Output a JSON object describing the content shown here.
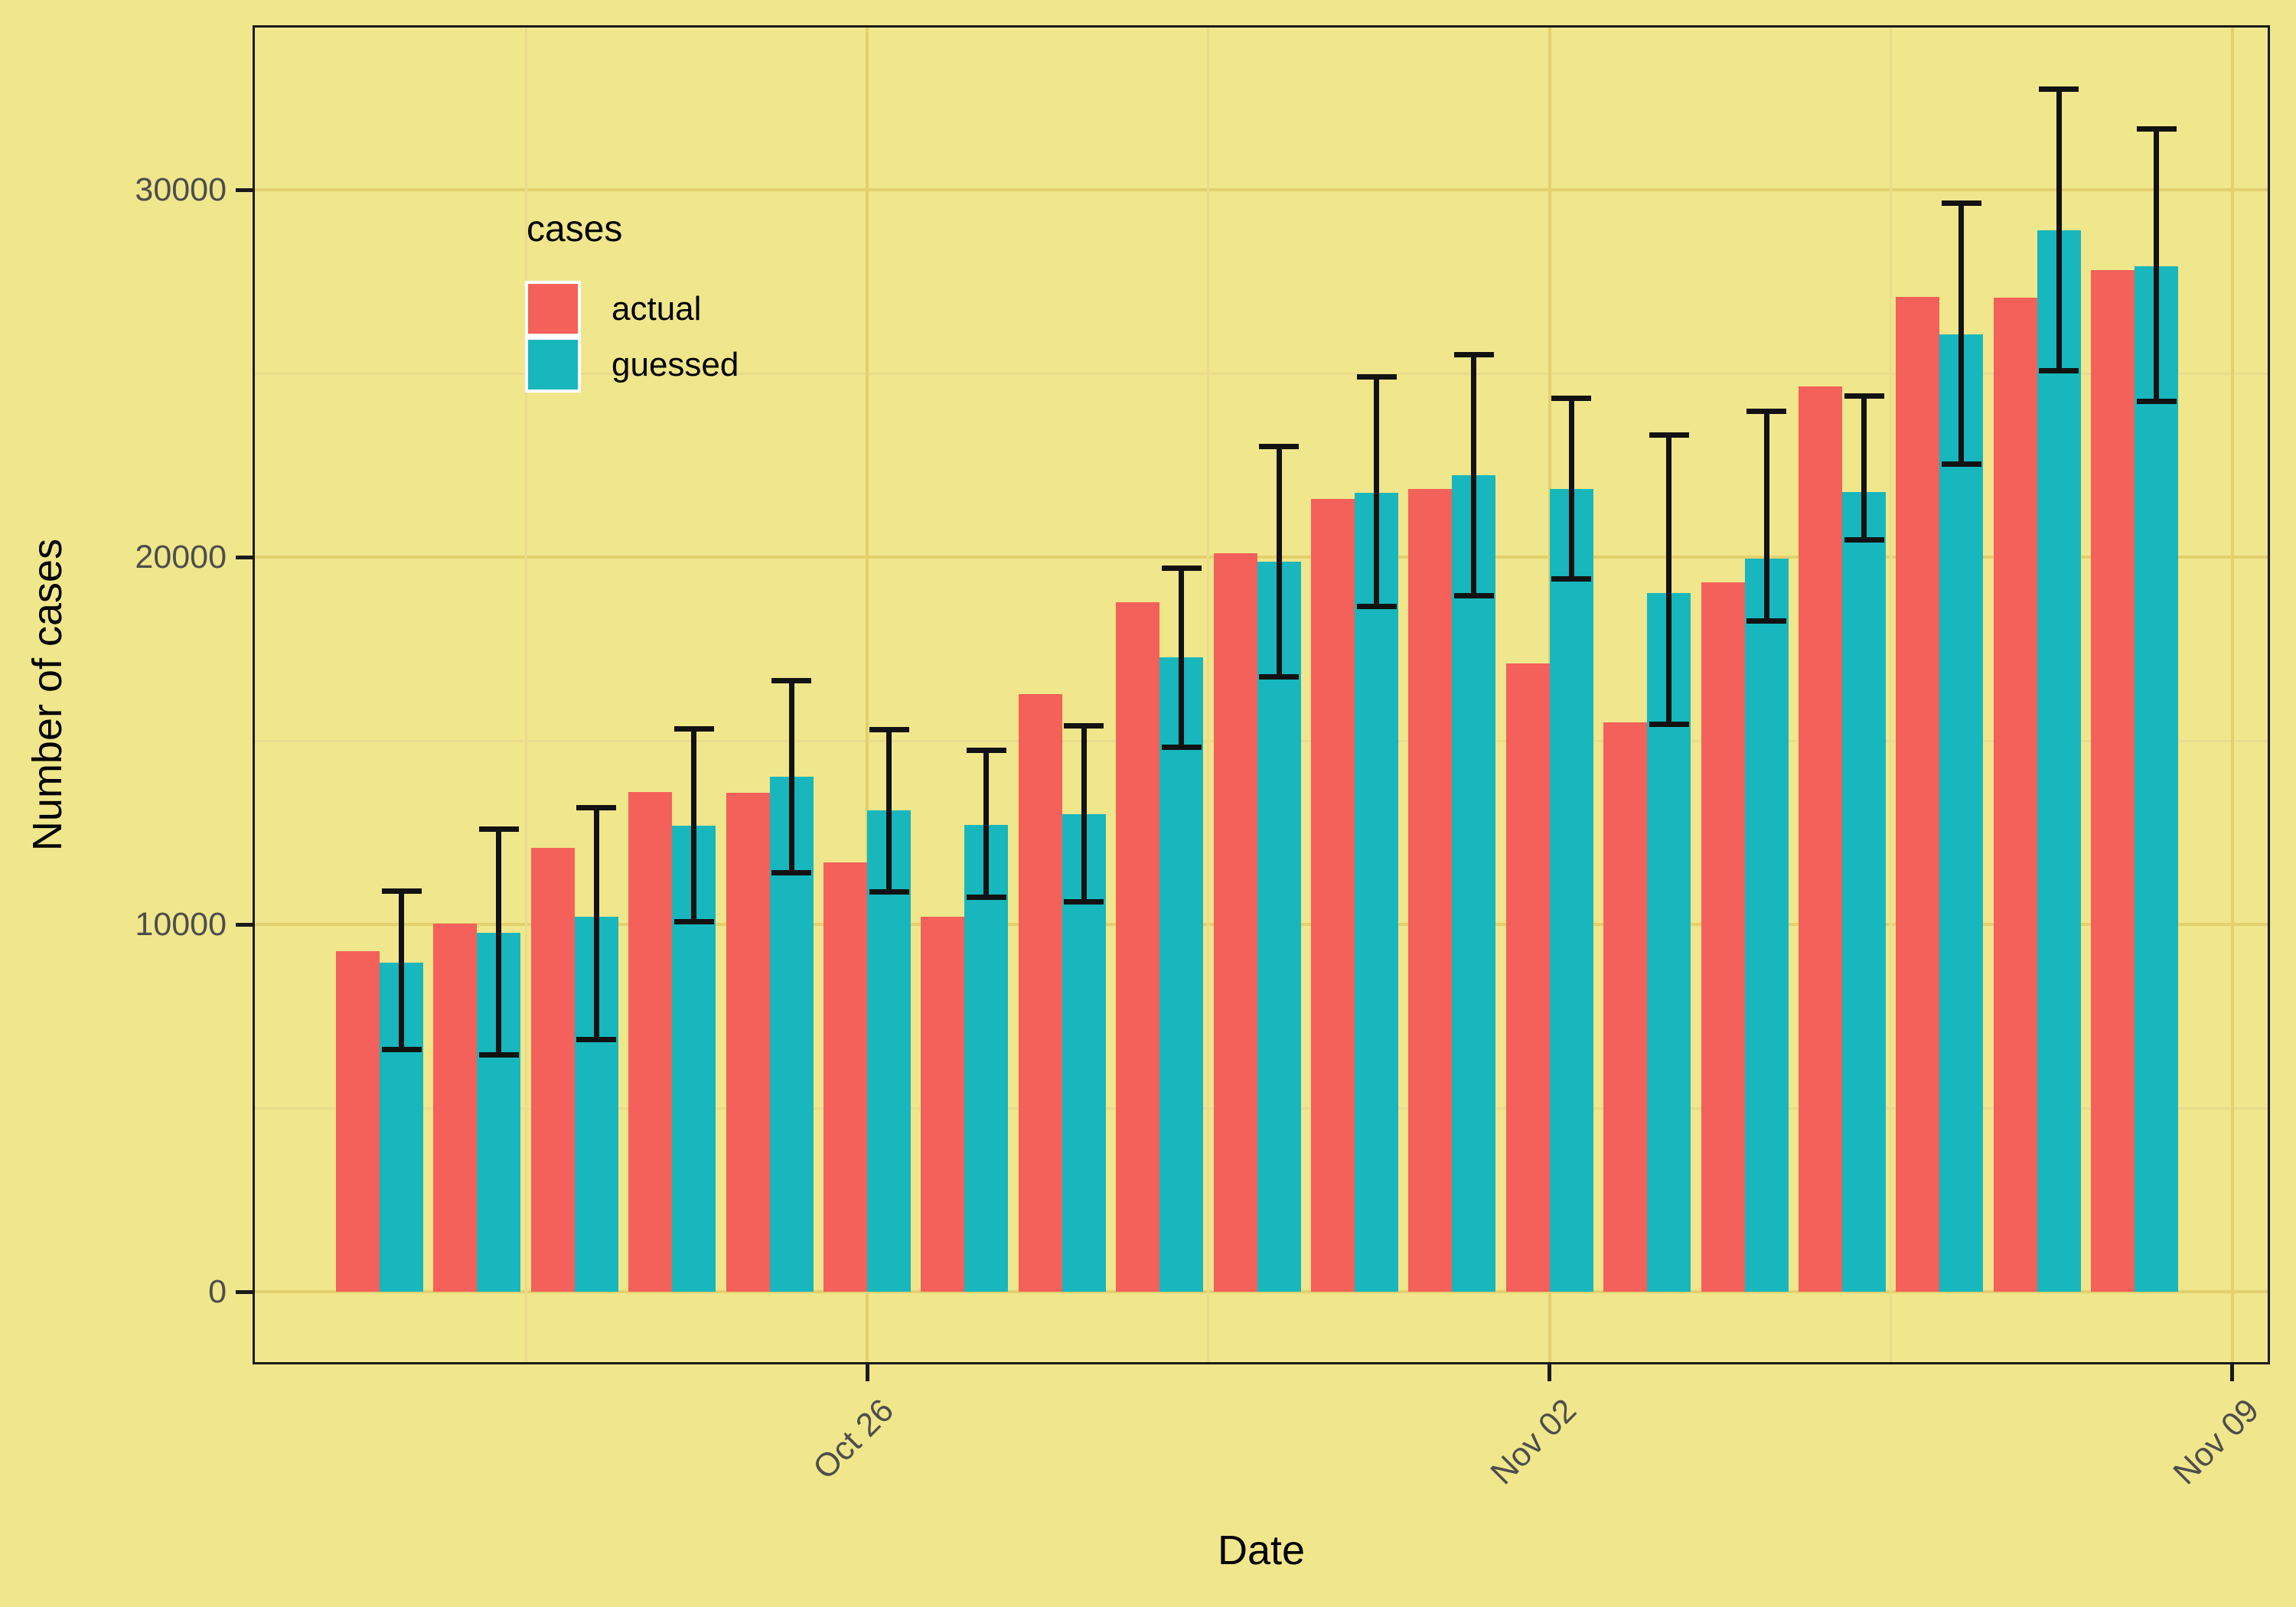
{
  "chart_data": {
    "type": "bar",
    "title": "",
    "xlabel": "Date",
    "ylabel": "Number of cases",
    "legend_title": "cases",
    "legend_position": "inside top-left",
    "grid": true,
    "categories": [
      "Oct 21",
      "Oct 22",
      "Oct 23",
      "Oct 24",
      "Oct 25",
      "Oct 26",
      "Oct 27",
      "Oct 28",
      "Oct 29",
      "Oct 30",
      "Oct 31",
      "Nov 01",
      "Nov 02",
      "Nov 03",
      "Nov 04",
      "Nov 05",
      "Nov 06",
      "Nov 07",
      "Nov 08"
    ],
    "series": [
      {
        "name": "actual",
        "color": "#F4605A",
        "values": [
          9270,
          10020,
          12080,
          13600,
          13580,
          11690,
          10200,
          16270,
          18770,
          20100,
          21580,
          21850,
          17100,
          15500,
          19310,
          24650,
          27090,
          27060,
          27810
        ]
      },
      {
        "name": "guessed",
        "color": "#17B7BD",
        "values": [
          8960,
          9770,
          10210,
          12690,
          14020,
          13100,
          12700,
          13000,
          17270,
          19870,
          21750,
          22230,
          21850,
          19020,
          19960,
          21770,
          26060,
          28900,
          27920
        ],
        "error_low": [
          6600,
          6440,
          6860,
          10080,
          11400,
          10890,
          10750,
          10620,
          14830,
          16730,
          18650,
          18950,
          19400,
          15440,
          18270,
          20460,
          22540,
          25080,
          24250
        ],
        "error_high": [
          10900,
          12600,
          13170,
          15330,
          16640,
          15300,
          14750,
          15410,
          19700,
          23020,
          24900,
          25520,
          24330,
          23330,
          23960,
          24380,
          29640,
          32750,
          31650
        ]
      }
    ],
    "ylim": [
      0,
      34400
    ],
    "yticks": [
      0,
      10000,
      20000,
      30000
    ],
    "y_minor_ticks": [
      5000,
      15000,
      25000
    ],
    "x_major_ticks": [
      {
        "label": "Oct 26",
        "day_index": 5
      },
      {
        "label": "Nov 02",
        "day_index": 12
      },
      {
        "label": "Nov 09",
        "day_index": 19
      }
    ],
    "x_minor_day_indices": [
      1.5,
      8.5,
      15.5
    ]
  },
  "legend": {
    "title": "cases",
    "items": [
      {
        "label": "actual",
        "color": "#F4605A"
      },
      {
        "label": "guessed",
        "color": "#17B7BD"
      }
    ]
  },
  "axes": {
    "x_title": "Date",
    "y_title": "Number of cases"
  },
  "colors": {
    "background": "#F0E68C",
    "grid_major": "#E3D06E",
    "grid_minor": "#EADC8C",
    "panel_border": "#1a1a1a",
    "tick_text": "#4D4D4D",
    "error_bar": "#121212"
  }
}
